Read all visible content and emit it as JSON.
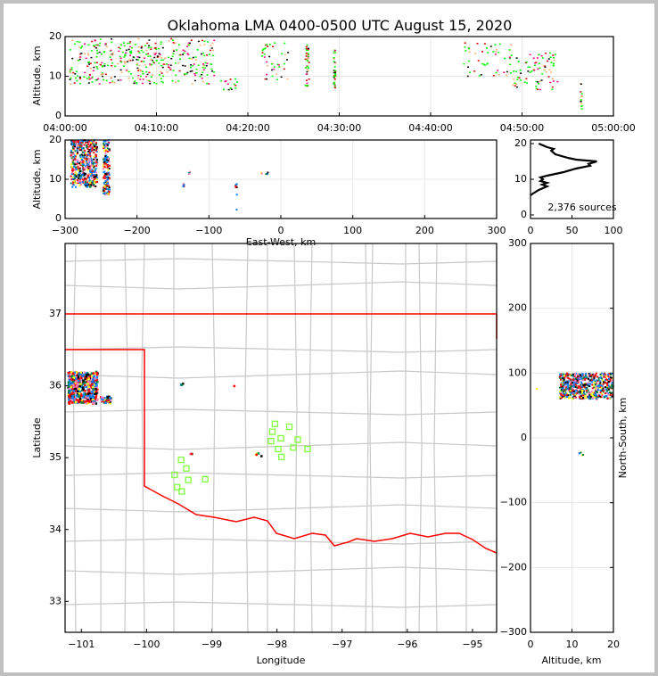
{
  "chart_data": [
    {
      "id": "time-height",
      "type": "scatter",
      "title": "Oklahoma LMA 0400-0500 UTC August 15, 2020",
      "xlabel": "",
      "ylabel": "Altitude, km",
      "xlim_minutes": [
        0,
        60
      ],
      "ylim": [
        0,
        20
      ],
      "xticks": [
        0,
        10,
        20,
        30,
        40,
        50,
        60
      ],
      "xtick_labels": [
        "04:00:00",
        "04:10:00",
        "04:20:00",
        "04:30:00",
        "04:40:00",
        "04:50:00",
        "05:00:00"
      ],
      "yticks": [
        0,
        10,
        20
      ],
      "ytick_labels": [
        "0",
        "10",
        "20"
      ],
      "grid": true,
      "clusters": [
        {
          "x": [
            0.5,
            10
          ],
          "y": [
            8,
            19.5
          ],
          "n": 260
        },
        {
          "x": [
            10,
            16.5
          ],
          "y": [
            8,
            19.5
          ],
          "n": 140
        },
        {
          "x": [
            17,
            19
          ],
          "y": [
            6.5,
            9.5
          ],
          "n": 14
        },
        {
          "x": [
            21.5,
            24.5
          ],
          "y": [
            9,
            18.5
          ],
          "n": 40
        },
        {
          "x": [
            26.3,
            26.7
          ],
          "y": [
            7.5,
            18
          ],
          "n": 40
        },
        {
          "x": [
            29.4,
            29.6
          ],
          "y": [
            7,
            17
          ],
          "n": 40
        },
        {
          "x": [
            43.5,
            49
          ],
          "y": [
            10,
            18.5
          ],
          "n": 50
        },
        {
          "x": [
            49,
            54
          ],
          "y": [
            6.5,
            16
          ],
          "n": 80
        },
        {
          "x": [
            56.4,
            56.6
          ],
          "y": [
            1.5,
            10
          ],
          "n": 14
        }
      ],
      "colors": [
        "#00ff00",
        "#00ff00",
        "#00ff00",
        "#ffb070",
        "#ff0080",
        "#cc0000",
        "#000000"
      ]
    },
    {
      "id": "ew-height",
      "type": "scatter",
      "xlabel": "East-West, km",
      "ylabel": "Altitude, km",
      "xlim": [
        -300,
        300
      ],
      "ylim": [
        0,
        20
      ],
      "xticks": [
        -300,
        -200,
        -100,
        0,
        100,
        200,
        300
      ],
      "xtick_labels": [
        "−300",
        "−200",
        "−100",
        "0",
        "100",
        "200",
        "300"
      ],
      "yticks": [
        0,
        10,
        20
      ],
      "ytick_labels": [
        "0",
        "10",
        "20"
      ],
      "clusters": [
        {
          "x": [
            -292,
            -255
          ],
          "y": [
            8,
            20
          ],
          "n": 500
        },
        {
          "x": [
            -247,
            -238
          ],
          "y": [
            6,
            20
          ],
          "n": 160
        },
        {
          "x": [
            -136,
            -134
          ],
          "y": [
            8,
            10
          ],
          "n": 6
        },
        {
          "x": [
            -129,
            -125
          ],
          "y": [
            11.3,
            12
          ],
          "n": 4
        },
        {
          "x": [
            -63,
            -61
          ],
          "y": [
            6,
            9
          ],
          "n": 8
        },
        {
          "x": [
            -63,
            -61
          ],
          "y": [
            2,
            2.3
          ],
          "n": 1
        },
        {
          "x": [
            -30,
            -18
          ],
          "y": [
            11.3,
            12
          ],
          "n": 5
        }
      ],
      "colors": [
        "#0080ff",
        "#0080ff",
        "#008040",
        "#ffff00",
        "#ff0000",
        "#ff0000",
        "#000000",
        "#ff80c0"
      ]
    },
    {
      "id": "altitude-histogram",
      "type": "line",
      "xlim": [
        0,
        100
      ],
      "ylim": [
        -1,
        21
      ],
      "xticks": [
        0,
        50,
        100
      ],
      "xtick_labels": [
        "0",
        "50",
        "100"
      ],
      "yticks": [
        0,
        10,
        20
      ],
      "ytick_labels": [
        "0",
        "10",
        "20"
      ],
      "annotation": "2,376 sources",
      "profile": [
        [
          0,
          5.5
        ],
        [
          3,
          6
        ],
        [
          10,
          7
        ],
        [
          15,
          7.5
        ],
        [
          20,
          8
        ],
        [
          14,
          8.5
        ],
        [
          20,
          9
        ],
        [
          12,
          9.5
        ],
        [
          15,
          10
        ],
        [
          12,
          10.5
        ],
        [
          20,
          11
        ],
        [
          40,
          12
        ],
        [
          55,
          13
        ],
        [
          72,
          13.8
        ],
        [
          70,
          14.3
        ],
        [
          80,
          15
        ],
        [
          55,
          15.5
        ],
        [
          45,
          16
        ],
        [
          30,
          17
        ],
        [
          25,
          18
        ],
        [
          28,
          18.5
        ],
        [
          20,
          19
        ],
        [
          10,
          20
        ]
      ]
    },
    {
      "id": "plan-view",
      "type": "scatter",
      "xlabel": "Longitude",
      "ylabel": "Latitude",
      "xlim": [
        -101.25,
        -94.63
      ],
      "ylim": [
        32.57,
        37.98
      ],
      "xticks": [
        -101,
        -100,
        -99,
        -98,
        -97,
        -96,
        -95
      ],
      "xtick_labels": [
        "−101",
        "−100",
        "−99",
        "−98",
        "−97",
        "−96",
        "−95"
      ],
      "yticks": [
        33,
        34,
        35,
        36,
        37
      ],
      "ytick_labels": [
        "33",
        "34",
        "35",
        "36",
        "37"
      ],
      "clusters": [
        {
          "x": [
            -101.2,
            -100.75
          ],
          "y": [
            35.75,
            36.2
          ],
          "n": 420
        },
        {
          "x": [
            -100.7,
            -100.55
          ],
          "y": [
            35.75,
            35.85
          ],
          "n": 40
        },
        {
          "x": [
            -99.48,
            -99.44
          ],
          "y": [
            36.01,
            36.05
          ],
          "n": 3
        },
        {
          "x": [
            -98.66,
            -98.64
          ],
          "y": [
            35.99,
            36.0
          ],
          "n": 1
        },
        {
          "x": [
            -98.32,
            -98.18
          ],
          "y": [
            35.02,
            35.06
          ],
          "n": 5
        },
        {
          "x": [
            -99.36,
            -99.3
          ],
          "y": [
            35.05,
            35.06
          ],
          "n": 3
        }
      ],
      "colors": [
        "#0080ff",
        "#0080ff",
        "#008040",
        "#ffff00",
        "#ff0000",
        "#ff0000",
        "#000000",
        "#ff80c0"
      ],
      "stations": [
        [
          -98.03,
          35.47
        ],
        [
          -97.81,
          35.43
        ],
        [
          -98.07,
          35.36
        ],
        [
          -97.94,
          35.27
        ],
        [
          -98.09,
          35.23
        ],
        [
          -97.68,
          35.25
        ],
        [
          -97.98,
          35.12
        ],
        [
          -97.75,
          35.14
        ],
        [
          -97.53,
          35.12
        ],
        [
          -97.93,
          35.01
        ],
        [
          -99.47,
          34.97
        ],
        [
          -99.39,
          34.85
        ],
        [
          -99.57,
          34.76
        ],
        [
          -99.36,
          34.69
        ],
        [
          -99.1,
          34.7
        ],
        [
          -99.53,
          34.59
        ],
        [
          -99.46,
          34.53
        ]
      ],
      "station_color": "#80ff40",
      "boundary_color": "#ff0000"
    },
    {
      "id": "height-ns",
      "type": "scatter",
      "xlabel": "Altitude, km",
      "ylabel": "North-South, km",
      "xlim": [
        0,
        20
      ],
      "ylim": [
        -300,
        300
      ],
      "xticks": [
        0,
        10,
        20
      ],
      "xtick_labels": [
        "0",
        "10",
        "20"
      ],
      "yticks": [
        -300,
        -200,
        -100,
        0,
        100,
        200,
        300
      ],
      "ytick_labels": [
        "−300",
        "−200",
        "−100",
        "0",
        "100",
        "200",
        "300"
      ],
      "clusters": [
        {
          "x": [
            7,
            20
          ],
          "y": [
            60,
            100
          ],
          "n": 600
        },
        {
          "x": [
            11.5,
            13
          ],
          "y": [
            -35,
            -22
          ],
          "n": 5
        },
        {
          "x": [
            1.5,
            1.7
          ],
          "y": [
            74,
            76
          ],
          "n": 1
        }
      ],
      "colors": [
        "#0080ff",
        "#0080ff",
        "#008040",
        "#ffff00",
        "#ff0000",
        "#ff0000",
        "#000000",
        "#ff80c0"
      ]
    }
  ]
}
